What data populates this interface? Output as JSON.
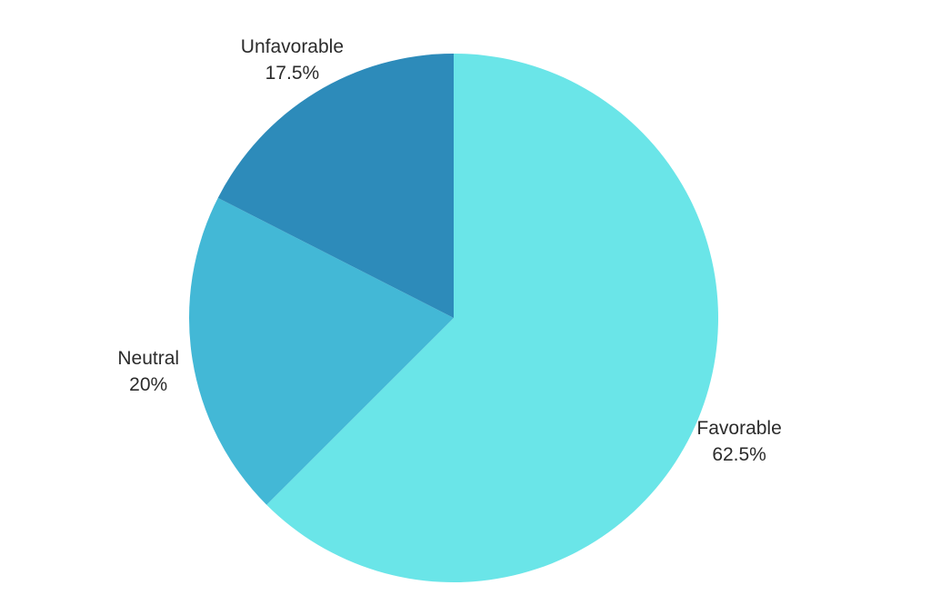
{
  "chart_data": {
    "type": "pie",
    "categories": [
      "Favorable",
      "Neutral",
      "Unfavorable"
    ],
    "values": [
      62.5,
      20,
      17.5
    ],
    "value_labels": [
      "62.5%",
      "20%",
      "17.5%"
    ],
    "colors": [
      "#6ae5e8",
      "#43b8d6",
      "#2d8bba"
    ],
    "start": "12 o'clock, clockwise",
    "legend": "none (labels outside slices)"
  }
}
